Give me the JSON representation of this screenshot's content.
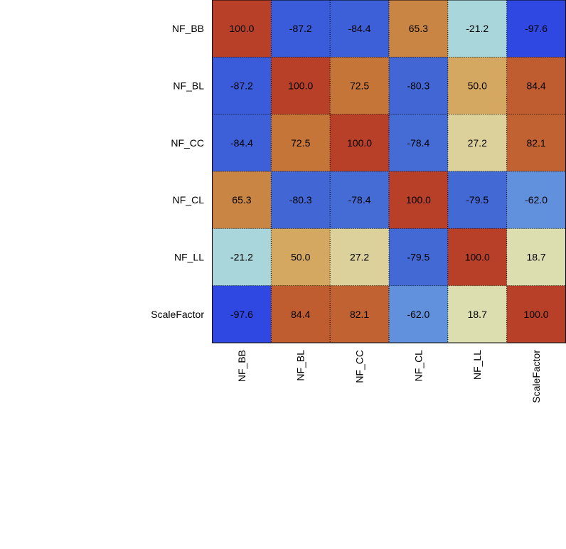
{
  "chart_data": {
    "type": "heatmap",
    "title": "",
    "xlabel": "",
    "ylabel": "",
    "rows": [
      "NF_BB",
      "NF_BL",
      "NF_CC",
      "NF_CL",
      "NF_LL",
      "ScaleFactor"
    ],
    "columns": [
      "NF_BB",
      "NF_BL",
      "NF_CC",
      "NF_CL",
      "NF_LL",
      "ScaleFactor"
    ],
    "values": [
      [
        100.0,
        -87.2,
        -84.4,
        65.3,
        -21.2,
        -97.6
      ],
      [
        -87.2,
        100.0,
        72.5,
        -80.3,
        50.0,
        84.4
      ],
      [
        -84.4,
        72.5,
        100.0,
        -78.4,
        27.2,
        82.1
      ],
      [
        65.3,
        -80.3,
        -78.4,
        100.0,
        -79.5,
        -62.0
      ],
      [
        -21.2,
        50.0,
        27.2,
        -79.5,
        100.0,
        18.7
      ],
      [
        -97.6,
        84.4,
        82.1,
        -62.0,
        18.7,
        100.0
      ]
    ],
    "value_range": [
      -100,
      100
    ],
    "grid": true
  }
}
